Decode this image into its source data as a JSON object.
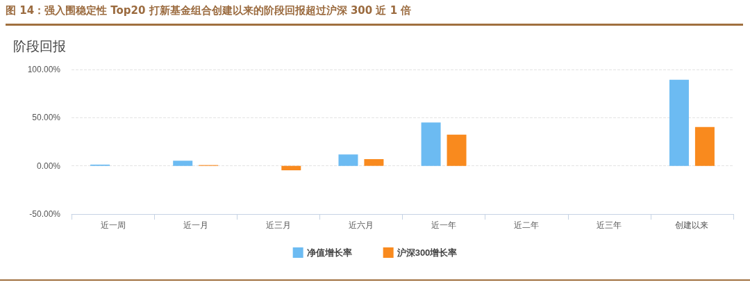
{
  "chart_data": {
    "type": "bar",
    "title": "图 14：强入围稳定性 Top20 打新基金组合创建以来的阶段回报超过沪深 300 近 1 倍",
    "subtitle": "阶段回报",
    "categories": [
      "近一周",
      "近一月",
      "近三月",
      "近六月",
      "近一年",
      "近二年",
      "近三年",
      "创建以来"
    ],
    "series": [
      {
        "name": "净值增长率",
        "color": "#6cbbf2",
        "values": [
          1.3,
          5.4,
          null,
          11.9,
          45.1,
          null,
          null,
          89.4
        ]
      },
      {
        "name": "沪深300增长率",
        "color": "#f98a1e",
        "values": [
          null,
          0.8,
          -4.6,
          7.0,
          32.4,
          null,
          null,
          40.4
        ]
      }
    ],
    "ylim": [
      -50,
      100
    ],
    "yticks": [
      {
        "value": -50,
        "label": "-50.00%"
      },
      {
        "value": 0,
        "label": "0.00%"
      },
      {
        "value": 50,
        "label": "50.00%"
      },
      {
        "value": 100,
        "label": "100.00%"
      }
    ],
    "grid": "y",
    "legend": "bottom"
  }
}
